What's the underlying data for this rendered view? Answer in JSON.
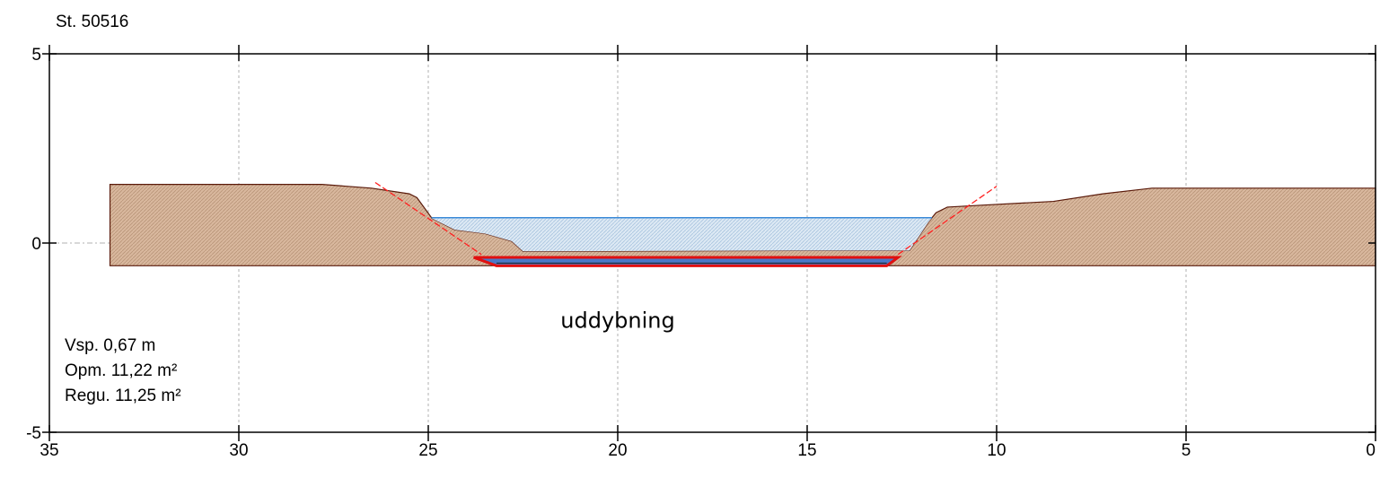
{
  "chart_data": {
    "type": "area",
    "title": "St. 50516",
    "xlabel": "",
    "ylabel": "",
    "xlim": [
      35,
      0
    ],
    "ylim": [
      -5,
      5
    ],
    "x_ticks": [
      35,
      30,
      25,
      20,
      15,
      10,
      5,
      0
    ],
    "y_ticks": [
      5,
      0,
      -5
    ],
    "grid": true,
    "colors": {
      "terrain": "#d9b89e",
      "terrain_edge": "#5a1a0a",
      "water": "#cfe0f0",
      "water_edge": "#3a8ad8",
      "excavation": "#e01010",
      "slope_line": "#ff2020",
      "grid": "#b0b0b0"
    },
    "terrain_profile": [
      [
        33.4,
        1.55
      ],
      [
        27.8,
        1.55
      ],
      [
        26.5,
        1.45
      ],
      [
        25.5,
        1.3
      ],
      [
        25.3,
        1.2
      ],
      [
        24.9,
        0.65
      ],
      [
        24.3,
        0.35
      ],
      [
        23.5,
        0.25
      ],
      [
        22.8,
        0.05
      ],
      [
        22.5,
        -0.22
      ],
      [
        15.3,
        -0.2
      ],
      [
        12.5,
        -0.2
      ],
      [
        12.3,
        -0.2
      ],
      [
        11.8,
        0.55
      ],
      [
        11.6,
        0.8
      ],
      [
        11.3,
        0.95
      ],
      [
        10.4,
        1.0
      ],
      [
        8.5,
        1.1
      ],
      [
        7.2,
        1.3
      ],
      [
        5.9,
        1.45
      ],
      [
        0,
        1.45
      ]
    ],
    "terrain_bottom": -0.6,
    "water_level": 0.67,
    "excavation_profile": [
      [
        23.8,
        -0.38
      ],
      [
        23.2,
        -0.6
      ],
      [
        12.9,
        -0.6
      ],
      [
        12.6,
        -0.38
      ]
    ],
    "slope_lines": [
      {
        "x": [
          26.4,
          23.6
        ],
        "y": [
          1.6,
          -0.3
        ]
      },
      {
        "x": [
          12.6,
          10.0
        ],
        "y": [
          -0.3,
          1.5
        ]
      }
    ],
    "annotations": [
      {
        "text": "uddybning",
        "x": 20.0,
        "y": -2.0
      }
    ],
    "stats": [
      "Vsp. 0,67 m",
      "Opm. 11,22 m²",
      "Regu. 11,25 m²"
    ]
  }
}
